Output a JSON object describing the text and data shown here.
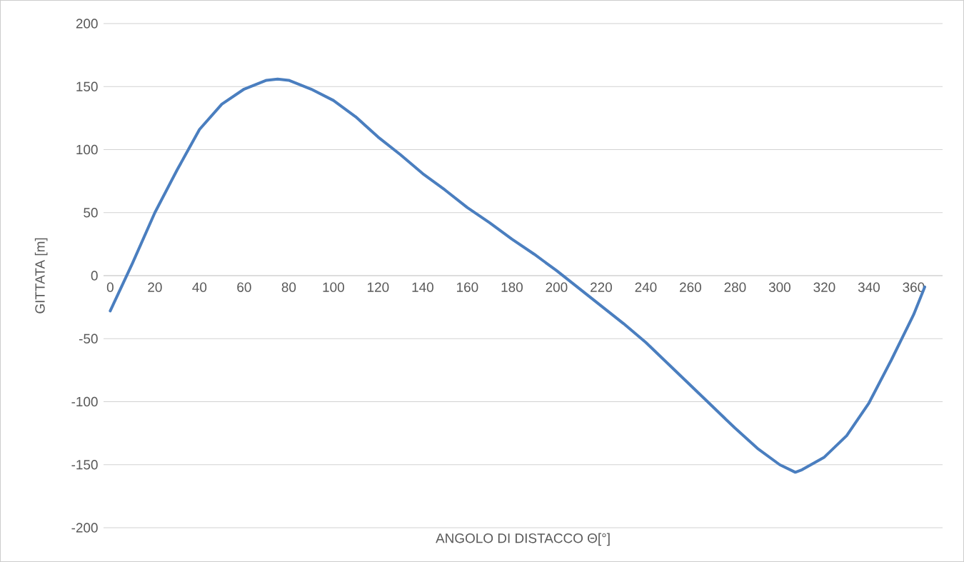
{
  "chart_data": {
    "type": "line",
    "xlabel": "ANGOLO DI DISTACCO Θ[°]",
    "ylabel": "GITTATA [m]",
    "x": [
      0,
      10,
      20,
      30,
      40,
      50,
      60,
      70,
      75,
      80,
      90,
      100,
      110,
      120,
      130,
      140,
      150,
      160,
      170,
      180,
      190,
      200,
      210,
      220,
      230,
      240,
      250,
      260,
      270,
      280,
      290,
      300,
      307,
      310,
      320,
      330,
      340,
      350,
      360,
      365
    ],
    "series": [
      {
        "color": "#4a7ebf",
        "values": [
          -28,
          10,
          50,
          84,
          116,
          136,
          148,
          155,
          156,
          155,
          148,
          139,
          126,
          110,
          96,
          81,
          68,
          54,
          42,
          29,
          17,
          4,
          -10,
          -24,
          -38,
          -53,
          -70,
          -87,
          -104,
          -121,
          -137,
          -150,
          -156,
          -154,
          -144,
          -127,
          -101,
          -67,
          -31,
          -9
        ]
      }
    ],
    "xlim": [
      -3,
      373
    ],
    "ylim": [
      -200,
      200
    ],
    "xticks": [
      0,
      20,
      40,
      60,
      80,
      100,
      120,
      140,
      160,
      180,
      200,
      220,
      240,
      260,
      280,
      300,
      320,
      340,
      360
    ],
    "yticks": [
      -200,
      -150,
      -100,
      -50,
      0,
      50,
      100,
      150,
      200
    ],
    "grid": "y",
    "marker": "none"
  }
}
